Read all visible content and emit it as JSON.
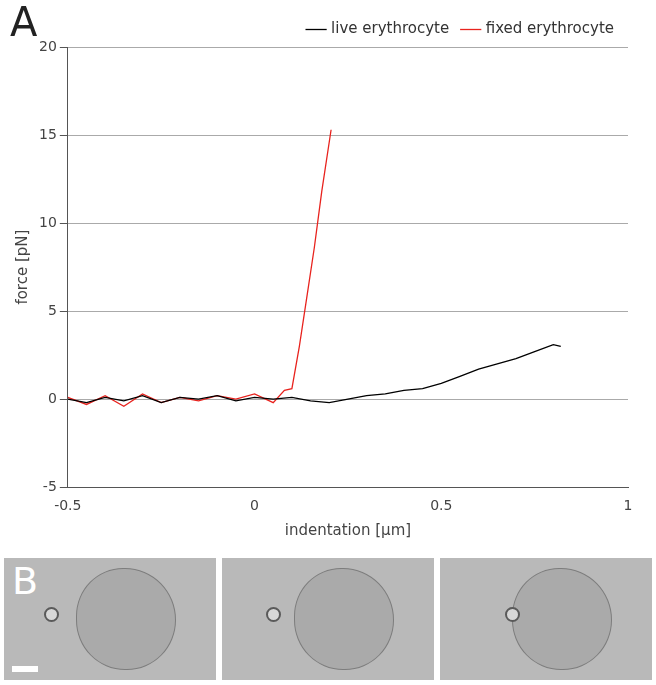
{
  "chart_data": {
    "type": "line",
    "panel": "A",
    "x_label": "indentation [µm]",
    "y_label": "force [pN]",
    "xlim": [
      -0.5,
      1
    ],
    "xticks": [
      -0.5,
      0,
      0.5,
      1
    ],
    "ylim": [
      -5,
      20
    ],
    "yticks": [
      -5,
      0,
      5,
      10,
      15,
      20
    ],
    "grid": "y",
    "legend": "top-right",
    "series": [
      {
        "name": "live erythrocyte",
        "color": "#000000",
        "x": [
          -0.5,
          -0.45,
          -0.4,
          -0.35,
          -0.3,
          -0.25,
          -0.2,
          -0.15,
          -0.1,
          -0.05,
          0,
          0.05,
          0.1,
          0.15,
          0.2,
          0.25,
          0.3,
          0.35,
          0.4,
          0.45,
          0.5,
          0.55,
          0.6,
          0.65,
          0.7,
          0.75,
          0.8,
          0.82
        ],
        "values": [
          0,
          -0.2,
          0.1,
          -0.1,
          0.2,
          -0.2,
          0.1,
          0,
          0.2,
          -0.1,
          0.1,
          0,
          0.1,
          -0.1,
          -0.2,
          0,
          0.2,
          0.3,
          0.5,
          0.6,
          0.9,
          1.3,
          1.7,
          2.0,
          2.3,
          2.7,
          3.1,
          3.0
        ]
      },
      {
        "name": "fixed erythrocyte",
        "color": "#e8231e",
        "x": [
          -0.5,
          -0.45,
          -0.4,
          -0.35,
          -0.3,
          -0.25,
          -0.2,
          -0.15,
          -0.1,
          -0.05,
          0,
          0.05,
          0.08,
          0.1,
          0.12,
          0.14,
          0.16,
          0.18,
          0.205
        ],
        "values": [
          0.1,
          -0.3,
          0.2,
          -0.4,
          0.3,
          -0.2,
          0.1,
          -0.1,
          0.2,
          0,
          0.3,
          -0.2,
          0.5,
          0.6,
          3.0,
          5.8,
          8.6,
          11.8,
          15.3
        ]
      }
    ]
  },
  "image_panel": {
    "panel": "B",
    "frames": 3
  }
}
